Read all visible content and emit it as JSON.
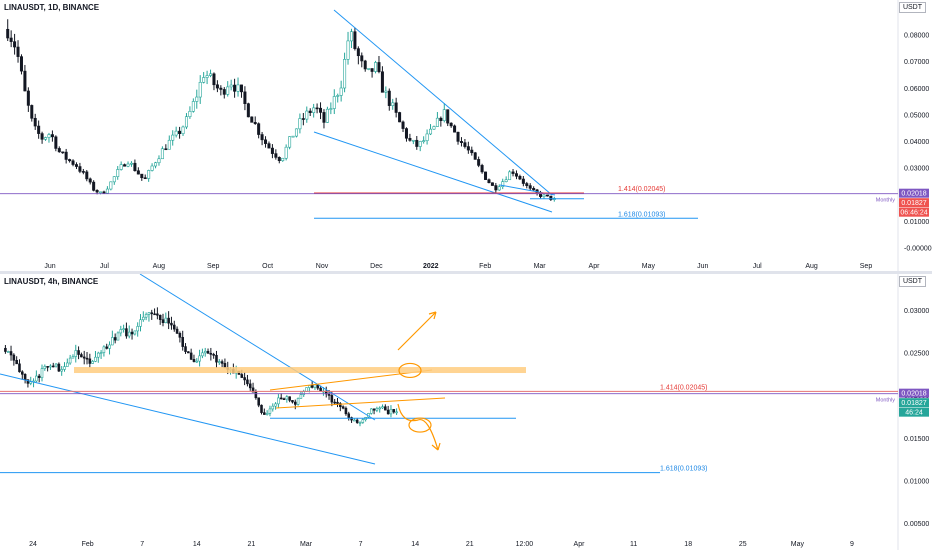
{
  "chart_data": [
    {
      "type": "candlestick",
      "title": "LINAUSDT, 1D, BINANCE",
      "unit_label": "USDT",
      "ylim": [
        -0.004,
        0.09
      ],
      "y_ticks": [
        "0.08000",
        "0.07000",
        "0.06000",
        "0.05000",
        "0.04000",
        "0.03000",
        "0.02000",
        "0.01000",
        "-0.00000"
      ],
      "x_labels": [
        "Jun",
        "Jul",
        "Aug",
        "Sep",
        "Oct",
        "Nov",
        "Dec",
        "2022",
        "Feb",
        "Mar",
        "Apr",
        "May",
        "Jun",
        "Jul",
        "Aug",
        "Sep"
      ],
      "close_path": [
        0.082,
        0.075,
        0.058,
        0.045,
        0.041,
        0.043,
        0.036,
        0.033,
        0.031,
        0.027,
        0.022,
        0.02,
        0.024,
        0.029,
        0.033,
        0.029,
        0.025,
        0.031,
        0.036,
        0.04,
        0.043,
        0.048,
        0.056,
        0.066,
        0.062,
        0.058,
        0.063,
        0.059,
        0.052,
        0.046,
        0.04,
        0.036,
        0.033,
        0.04,
        0.046,
        0.05,
        0.053,
        0.047,
        0.054,
        0.061,
        0.081,
        0.072,
        0.064,
        0.068,
        0.059,
        0.053,
        0.046,
        0.04,
        0.038,
        0.041,
        0.045,
        0.051,
        0.045,
        0.04,
        0.036,
        0.031,
        0.026,
        0.022,
        0.025,
        0.029,
        0.026,
        0.022,
        0.02,
        0.019,
        0.018
      ],
      "levels": [
        {
          "label": "1.414(0.02045)",
          "value": 0.02045
        },
        {
          "label": "1.618(0.01093)",
          "value": 0.01093
        }
      ],
      "horizontal_line": {
        "label": "Monthly",
        "value": 0.02018
      },
      "price_badges": [
        {
          "text": "0.02018",
          "color": "#7e57c2"
        },
        {
          "text": "0.01827",
          "color": "#ef5350"
        },
        {
          "text": "06:46:24",
          "color": "#ef5350"
        }
      ]
    },
    {
      "type": "candlestick",
      "title": "LINAUSDT, 4h, BINANCE",
      "unit_label": "USDT",
      "ylim": [
        0.0035,
        0.0335
      ],
      "y_ticks": [
        "0.03000",
        "0.02500",
        "0.02000",
        "0.01500",
        "0.01000",
        "0.00500"
      ],
      "x_labels": [
        "24",
        "Feb",
        "7",
        "14",
        "21",
        "Mar",
        "7",
        "14",
        "21",
        "12:00",
        "Apr",
        "11",
        "18",
        "25",
        "May",
        "9"
      ],
      "close_path": [
        0.0255,
        0.024,
        0.0228,
        0.0215,
        0.022,
        0.0232,
        0.0238,
        0.023,
        0.0242,
        0.025,
        0.0244,
        0.0236,
        0.0248,
        0.0258,
        0.0268,
        0.0276,
        0.027,
        0.0285,
        0.0292,
        0.0298,
        0.029,
        0.0285,
        0.027,
        0.0252,
        0.024,
        0.0245,
        0.0252,
        0.024,
        0.0232,
        0.0228,
        0.0222,
        0.021,
        0.02,
        0.0175,
        0.0185,
        0.0195,
        0.02,
        0.019,
        0.0205,
        0.0212,
        0.0208,
        0.02,
        0.0192,
        0.0185,
        0.0175,
        0.0168,
        0.0175,
        0.0184,
        0.0188,
        0.018,
        0.0183
      ],
      "levels": [
        {
          "label": "1.414(0.02045)",
          "value": 0.02045
        },
        {
          "label": "1.618(0.01093)",
          "value": 0.01093
        }
      ],
      "horizontal_line": {
        "label": "Monthly",
        "value": 0.02018
      },
      "price_badges": [
        {
          "text": "0.02018",
          "color": "#7e57c2"
        },
        {
          "text": "0.01827",
          "color": "#26a69a"
        },
        {
          "text": "46:24",
          "color": "#26a69a"
        }
      ]
    }
  ],
  "colors": {
    "up": "#26a69a",
    "down": "#131722",
    "trendline": "#2196f3",
    "fib_line": "#2196f3",
    "level_red": "#e57373",
    "monthly_line": "#7e57c2",
    "zone": "#ffcc80",
    "arrow": "#ff9800"
  }
}
